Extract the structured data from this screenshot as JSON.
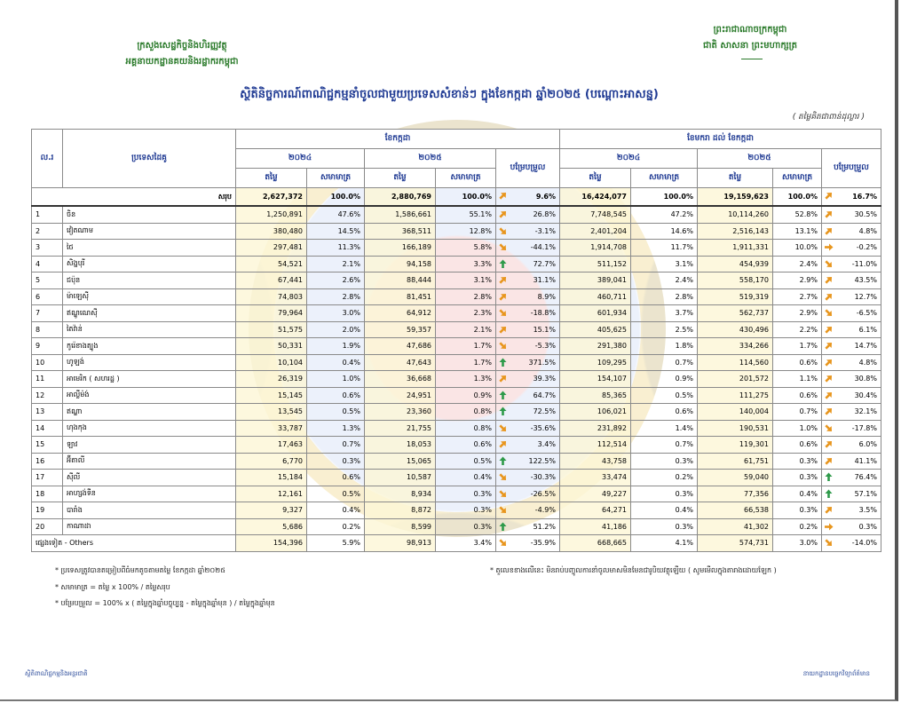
{
  "header": {
    "left": [
      "ក្រសួងសេដ្ឋកិច្ចនិងហិរញ្ញវត្ថុ",
      "អគ្គនាយកដ្ឋានគយនិងរដ្ឋាករកម្ពុជា"
    ],
    "right": [
      "ព្រះរាជាណាចក្រកម្ពុជា",
      "ជាតិ សាសនា ព្រះមហាក្សត្រ"
    ]
  },
  "title": "ស្ថិតិនិច្ចការណ៍ពាណិជ្ជកម្មនាំចូលជាមួយប្រទេសសំខាន់ៗ ក្នុងខែកក្កដា ឆ្នាំ២០២៥ (បណ្ដោះអាសន្ន)",
  "unit": "( តម្លៃគិតជាពាន់ដុល្លារ )",
  "table": {
    "head": {
      "no": "ល.រ",
      "country": "ប្រទេសដៃគូ",
      "period1": "ខែកក្កដា",
      "period2": "ខែមករា ដល់ ខែកក្កដា",
      "year1": "២០២៤",
      "year2": "២០២៥",
      "value": "តម្លៃ",
      "share": "សមាមាត្រ",
      "change": "បម្រែបម្រួល"
    },
    "total": {
      "label": "សរុប",
      "cells": [
        "2,627,372",
        "100.0%",
        "2,880,769",
        "100.0%",
        "9.6%",
        "16,424,077",
        "100.0%",
        "19,159,623",
        "100.0%",
        "16.7%"
      ]
    },
    "rows": [
      {
        "no": "1",
        "country": "ចិន",
        "cells": [
          "1,250,891",
          "47.6%",
          "1,586,661",
          "55.1%",
          "26.8%",
          "7,748,545",
          "47.2%",
          "10,114,260",
          "52.8%",
          "30.5%"
        ]
      },
      {
        "no": "2",
        "country": "វៀតណាម",
        "cells": [
          "380,480",
          "14.5%",
          "368,511",
          "12.8%",
          "-3.1%",
          "2,401,204",
          "14.6%",
          "2,516,143",
          "13.1%",
          "4.8%"
        ]
      },
      {
        "no": "3",
        "country": "ថៃ",
        "cells": [
          "297,481",
          "11.3%",
          "166,189",
          "5.8%",
          "-44.1%",
          "1,914,708",
          "11.7%",
          "1,911,331",
          "10.0%",
          "-0.2%"
        ]
      },
      {
        "no": "4",
        "country": "សិង្ហបុរី",
        "cells": [
          "54,521",
          "2.1%",
          "94,158",
          "3.3%",
          "72.7%",
          "511,152",
          "3.1%",
          "454,939",
          "2.4%",
          "-11.0%"
        ]
      },
      {
        "no": "5",
        "country": "ជប៉ុន",
        "cells": [
          "67,441",
          "2.6%",
          "88,444",
          "3.1%",
          "31.1%",
          "389,041",
          "2.4%",
          "558,170",
          "2.9%",
          "43.5%"
        ]
      },
      {
        "no": "6",
        "country": "ម៉ាឡេស៊ី",
        "cells": [
          "74,803",
          "2.8%",
          "81,451",
          "2.8%",
          "8.9%",
          "460,711",
          "2.8%",
          "519,319",
          "2.7%",
          "12.7%"
        ]
      },
      {
        "no": "7",
        "country": "ឥណ្ឌូណេស៊ី",
        "cells": [
          "79,964",
          "3.0%",
          "64,912",
          "2.3%",
          "-18.8%",
          "601,934",
          "3.7%",
          "562,737",
          "2.9%",
          "-6.5%"
        ]
      },
      {
        "no": "8",
        "country": "តៃវ៉ាន់",
        "cells": [
          "51,575",
          "2.0%",
          "59,357",
          "2.1%",
          "15.1%",
          "405,625",
          "2.5%",
          "430,496",
          "2.2%",
          "6.1%"
        ]
      },
      {
        "no": "9",
        "country": "កូរ៉េខាងត្បូង",
        "cells": [
          "50,331",
          "1.9%",
          "47,686",
          "1.7%",
          "-5.3%",
          "291,380",
          "1.8%",
          "334,266",
          "1.7%",
          "14.7%"
        ]
      },
      {
        "no": "10",
        "country": "ហូឡង់",
        "cells": [
          "10,104",
          "0.4%",
          "47,643",
          "1.7%",
          "371.5%",
          "109,295",
          "0.7%",
          "114,560",
          "0.6%",
          "4.8%"
        ]
      },
      {
        "no": "11",
        "country": "អាមេរិក ( សហរដ្ឋ )",
        "cells": [
          "26,319",
          "1.0%",
          "36,668",
          "1.3%",
          "39.3%",
          "154,107",
          "0.9%",
          "201,572",
          "1.1%",
          "30.8%"
        ]
      },
      {
        "no": "12",
        "country": "អាល្លឺម៉ង់",
        "cells": [
          "15,145",
          "0.6%",
          "24,951",
          "0.9%",
          "64.7%",
          "85,365",
          "0.5%",
          "111,275",
          "0.6%",
          "30.4%"
        ]
      },
      {
        "no": "13",
        "country": "ឥណ្ឌា",
        "cells": [
          "13,545",
          "0.5%",
          "23,360",
          "0.8%",
          "72.5%",
          "106,021",
          "0.6%",
          "140,004",
          "0.7%",
          "32.1%"
        ]
      },
      {
        "no": "14",
        "country": "ហុងកុង",
        "cells": [
          "33,787",
          "1.3%",
          "21,755",
          "0.8%",
          "-35.6%",
          "231,892",
          "1.4%",
          "190,531",
          "1.0%",
          "-17.8%"
        ]
      },
      {
        "no": "15",
        "country": "ឡាវ",
        "cells": [
          "17,463",
          "0.7%",
          "18,053",
          "0.6%",
          "3.4%",
          "112,514",
          "0.7%",
          "119,301",
          "0.6%",
          "6.0%"
        ]
      },
      {
        "no": "16",
        "country": "អ៊ីតាលី",
        "cells": [
          "6,770",
          "0.3%",
          "15,065",
          "0.5%",
          "122.5%",
          "43,758",
          "0.3%",
          "61,751",
          "0.3%",
          "41.1%"
        ]
      },
      {
        "no": "17",
        "country": "ស៊ីលី",
        "cells": [
          "15,184",
          "0.6%",
          "10,587",
          "0.4%",
          "-30.3%",
          "33,474",
          "0.2%",
          "59,040",
          "0.3%",
          "76.4%"
        ]
      },
      {
        "no": "18",
        "country": "អាហ្សង់ទីន",
        "cells": [
          "12,161",
          "0.5%",
          "8,934",
          "0.3%",
          "-26.5%",
          "49,227",
          "0.3%",
          "77,356",
          "0.4%",
          "57.1%"
        ]
      },
      {
        "no": "19",
        "country": "បារាំង",
        "cells": [
          "9,327",
          "0.4%",
          "8,872",
          "0.3%",
          "-4.9%",
          "64,271",
          "0.4%",
          "66,538",
          "0.3%",
          "3.5%"
        ]
      },
      {
        "no": "20",
        "country": "កាណាដា",
        "cells": [
          "5,686",
          "0.2%",
          "8,599",
          "0.3%",
          "51.2%",
          "41,186",
          "0.3%",
          "41,302",
          "0.2%",
          "0.3%"
        ]
      },
      {
        "country": "ផ្សេងទៀត - Others",
        "cells": [
          "154,396",
          "5.9%",
          "98,913",
          "3.4%",
          "-35.9%",
          "668,665",
          "4.1%",
          "574,731",
          "3.0%",
          "-14.0%"
        ]
      }
    ]
  },
  "notes": {
    "left": [
      "* ប្រទេសត្រូវបានតម្រៀបពីធំមកតូចតាមតម្លៃ ខែកក្កដា ឆ្នាំ២០២៥",
      "* សមាមាត្រ = តម្លៃ x 100% / តម្លៃសរុប",
      "* បម្រែបម្រួល = 100% x ( តម្លៃក្នុងឆ្នាំបច្ចុប្បន្ន - តម្លៃក្នុងឆ្នាំមុន ) / តម្លៃក្នុងឆ្នាំមុន"
    ],
    "right": "* តួលេខខាងលើនេះ មិនរាប់បញ្ចូលការនាំចូលមាសមិនមែនជារូបិយវត្ថុឡើយ ( សូមមើលក្នុងតារាងដោយឡែក )"
  },
  "footer": {
    "left": "ស្ថិតិពាណិជ្ជកម្មនិងអន្តរជាតិ",
    "right": "នាយកដ្ឋានបច្ចេកវិទ្យាព័ត៌មាន"
  }
}
